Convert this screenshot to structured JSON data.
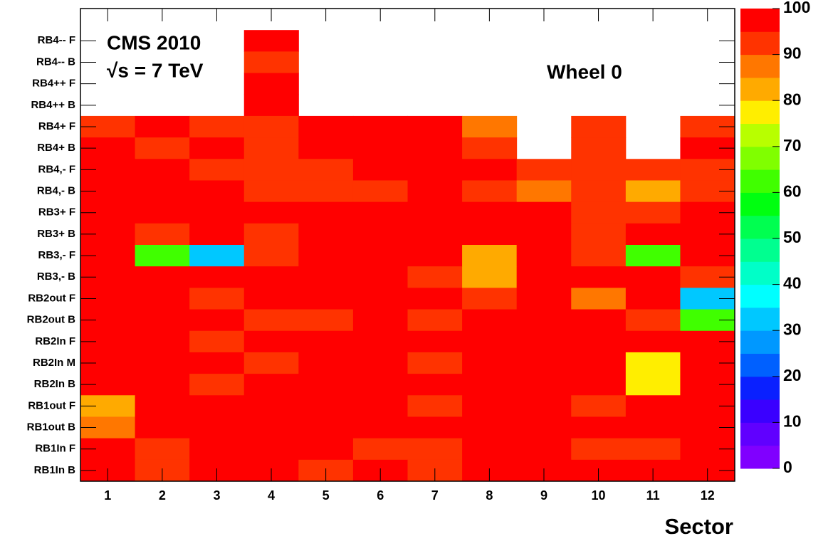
{
  "chart_data": {
    "type": "heatmap",
    "annotations": [
      "CMS 2010",
      "√s = 7 TeV",
      "Wheel 0"
    ],
    "x_label": "Sector",
    "categories": [
      "1",
      "2",
      "3",
      "4",
      "5",
      "6",
      "7",
      "8",
      "9",
      "10",
      "11",
      "12"
    ],
    "y_categories": [
      null,
      "RB4-- F",
      "RB4-- B",
      "RB4++ F",
      "RB4++ B",
      "RB4+ F",
      "RB4+ B",
      "RB4,- F",
      "RB4,- B",
      "RB3+ F",
      "RB3+ B",
      "RB3,- F",
      "RB3,- B",
      "RB2out F",
      "RB2out B",
      "RB2In F",
      "RB2In M",
      "RB2In B",
      "RB1out F",
      "RB1out B",
      "RB1In F",
      "RB1In B"
    ],
    "values": [
      [
        null,
        null,
        null,
        null,
        null,
        null,
        null,
        null,
        null,
        null,
        null,
        null
      ],
      [
        null,
        null,
        null,
        98,
        null,
        null,
        null,
        null,
        null,
        null,
        null,
        null
      ],
      [
        null,
        null,
        null,
        92,
        null,
        null,
        null,
        null,
        null,
        null,
        null,
        null
      ],
      [
        null,
        null,
        null,
        98,
        null,
        null,
        null,
        null,
        null,
        null,
        null,
        null
      ],
      [
        null,
        null,
        null,
        98,
        null,
        null,
        null,
        null,
        null,
        null,
        null,
        null
      ],
      [
        92,
        98,
        92,
        92,
        98,
        98,
        98,
        87,
        null,
        92,
        null,
        92
      ],
      [
        98,
        92,
        98,
        92,
        98,
        98,
        98,
        92,
        null,
        92,
        null,
        98
      ],
      [
        98,
        98,
        92,
        92,
        92,
        98,
        98,
        98,
        92,
        92,
        92,
        92
      ],
      [
        98,
        98,
        98,
        92,
        92,
        92,
        98,
        92,
        87,
        92,
        83,
        92
      ],
      [
        98,
        98,
        98,
        98,
        98,
        98,
        98,
        98,
        98,
        92,
        92,
        98
      ],
      [
        98,
        92,
        98,
        92,
        98,
        98,
        98,
        98,
        98,
        92,
        98,
        98
      ],
      [
        98,
        62,
        32,
        92,
        98,
        98,
        98,
        83,
        98,
        92,
        62,
        98
      ],
      [
        98,
        98,
        98,
        98,
        98,
        98,
        92,
        83,
        98,
        98,
        98,
        92
      ],
      [
        98,
        98,
        92,
        98,
        98,
        98,
        98,
        92,
        98,
        87,
        98,
        32
      ],
      [
        98,
        98,
        98,
        92,
        92,
        98,
        92,
        98,
        98,
        98,
        92,
        62
      ],
      [
        98,
        98,
        92,
        98,
        98,
        98,
        98,
        98,
        98,
        98,
        98,
        98
      ],
      [
        98,
        98,
        98,
        92,
        98,
        98,
        92,
        98,
        98,
        98,
        78,
        98
      ],
      [
        98,
        98,
        92,
        98,
        98,
        98,
        98,
        98,
        98,
        98,
        78,
        98
      ],
      [
        83,
        98,
        98,
        98,
        98,
        98,
        92,
        98,
        98,
        92,
        98,
        98
      ],
      [
        87,
        98,
        98,
        98,
        98,
        98,
        98,
        98,
        98,
        98,
        98,
        98
      ],
      [
        98,
        92,
        98,
        98,
        98,
        92,
        92,
        98,
        98,
        92,
        92,
        98
      ],
      [
        98,
        92,
        98,
        98,
        92,
        98,
        92,
        98,
        98,
        98,
        98,
        98
      ]
    ],
    "zlim": [
      0,
      100
    ],
    "zticks": [
      0,
      10,
      20,
      30,
      40,
      50,
      60,
      70,
      80,
      90,
      100
    ],
    "palette": [
      "#8000ff",
      "#6000ff",
      "#3a00ff",
      "#0a20ff",
      "#0060ff",
      "#0098ff",
      "#00c8ff",
      "#00ffff",
      "#00ffc8",
      "#00ff90",
      "#00ff50",
      "#00ff10",
      "#40ff00",
      "#80ff00",
      "#b8ff00",
      "#ffee00",
      "#ffaa00",
      "#ff7700",
      "#ff3300",
      "#ff0000"
    ]
  }
}
